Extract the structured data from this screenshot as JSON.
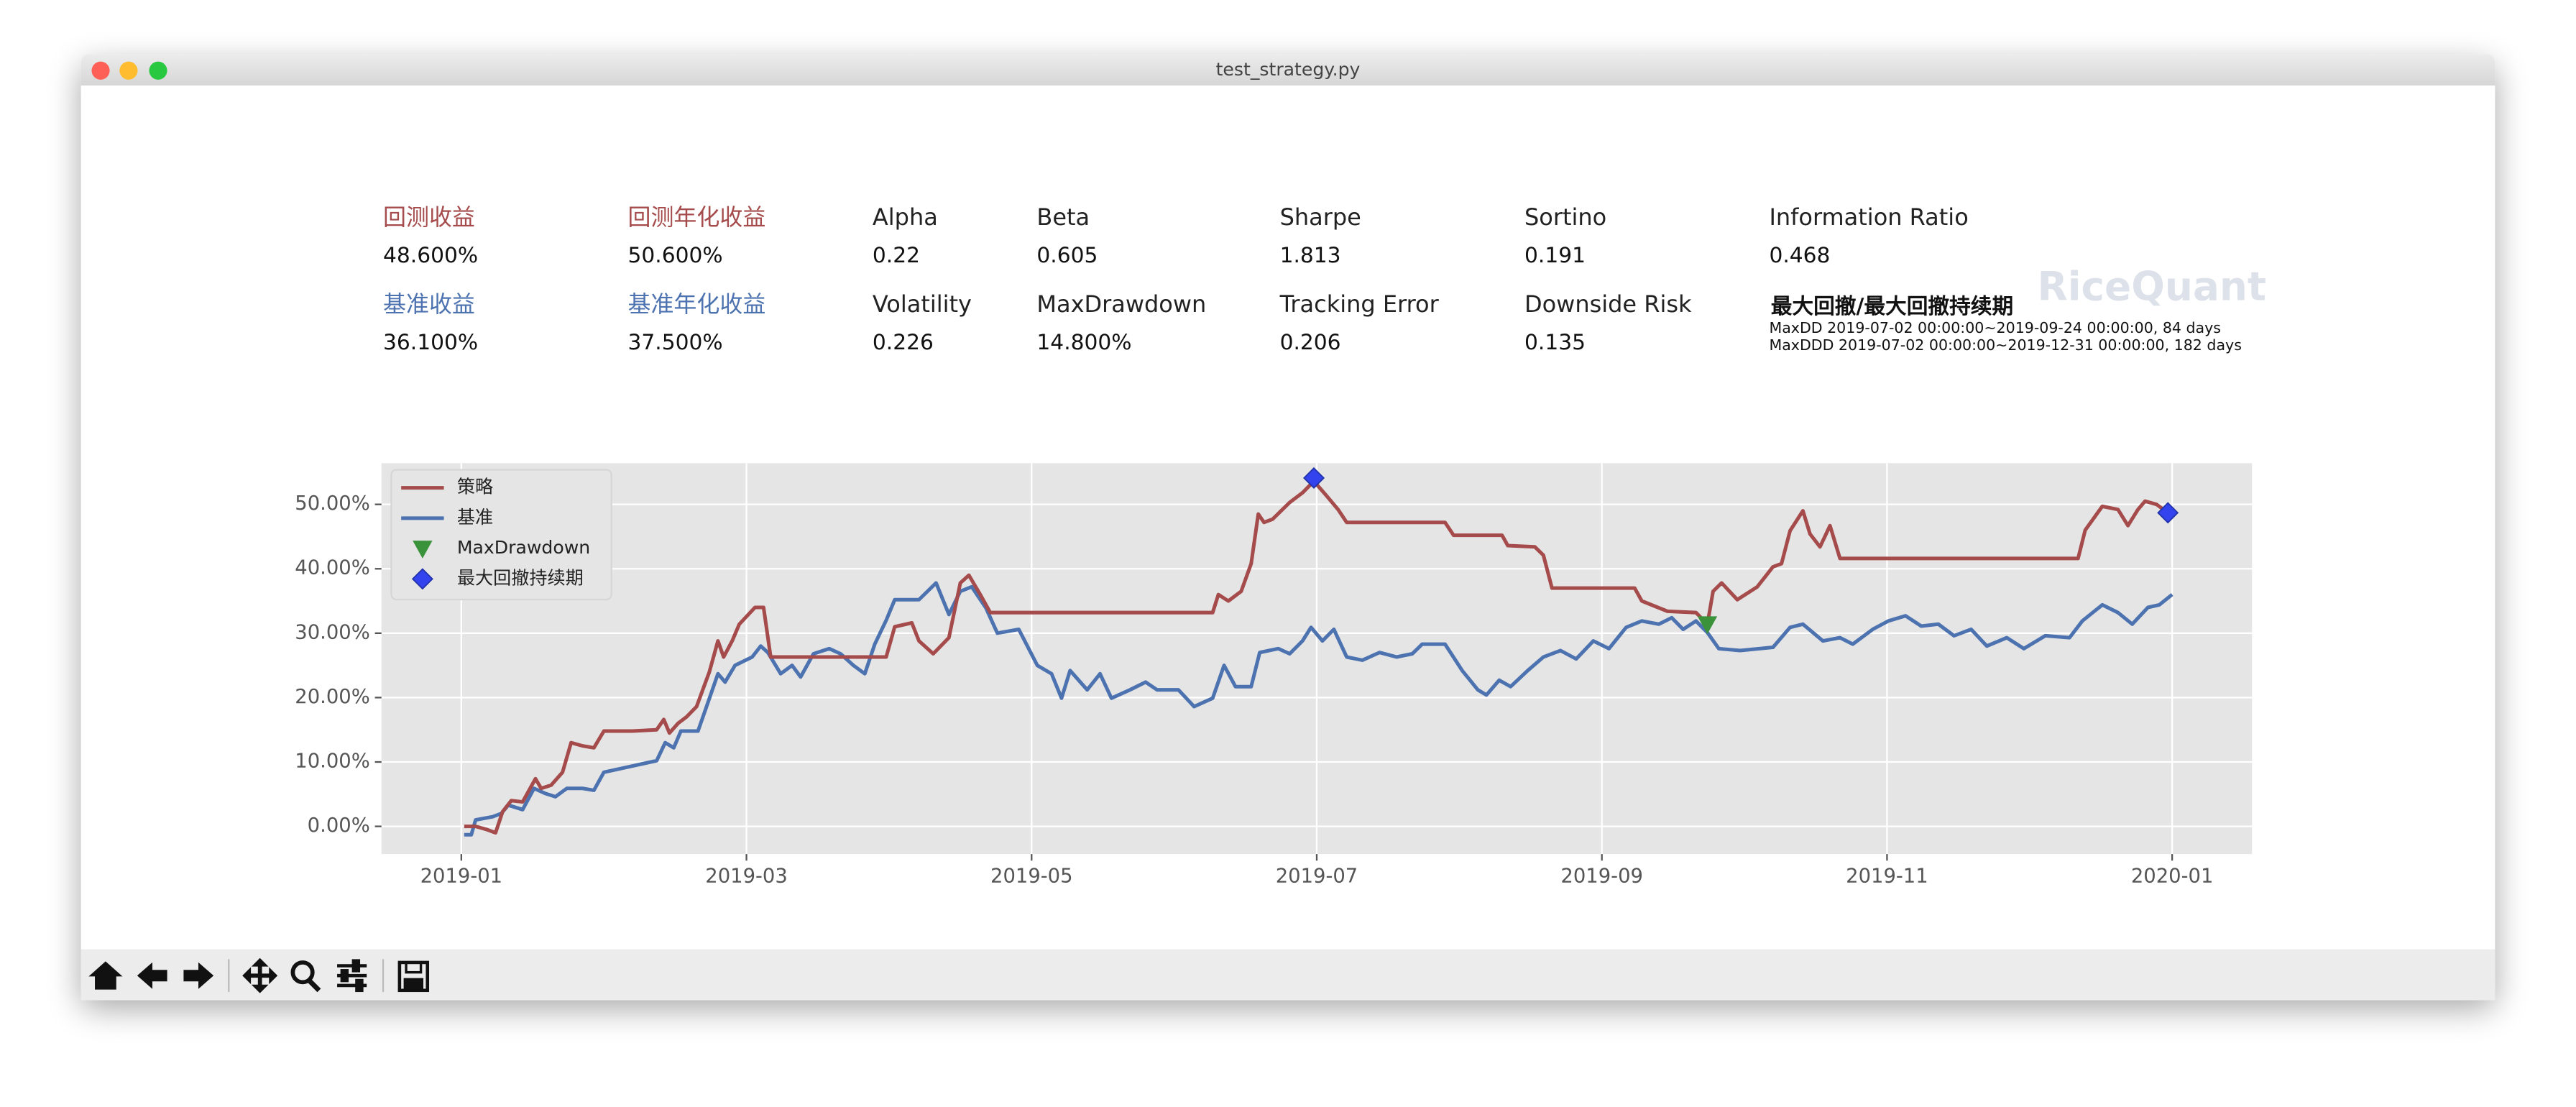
{
  "window": {
    "title": "test_strategy.py"
  },
  "metrics": [
    {
      "label": "回测收益",
      "value": "48.600%",
      "color": "#a54b4b"
    },
    {
      "label": "回测年化收益",
      "value": "50.600%",
      "color": "#a54b4b"
    },
    {
      "label": "Alpha",
      "value": "0.22",
      "color": "#222222"
    },
    {
      "label": "Beta",
      "value": "0.605",
      "color": "#222222"
    },
    {
      "label": "Sharpe",
      "value": "1.813",
      "color": "#222222"
    },
    {
      "label": "Sortino",
      "value": "0.191",
      "color": "#222222"
    },
    {
      "label": "Information Ratio",
      "value": "0.468",
      "color": "#222222"
    },
    {
      "label": "基准收益",
      "value": "36.100%",
      "color": "#4c72b0"
    },
    {
      "label": "基准年化收益",
      "value": "37.500%",
      "color": "#4c72b0"
    },
    {
      "label": "Volatility",
      "value": "0.226",
      "color": "#222222"
    },
    {
      "label": "MaxDrawdown",
      "value": "14.800%",
      "color": "#222222"
    },
    {
      "label": "Tracking Error",
      "value": "0.206",
      "color": "#222222"
    },
    {
      "label": "Downside Risk",
      "value": "0.135",
      "color": "#222222"
    }
  ],
  "drawdown": {
    "label": "最大回撤/最大回撤持续期",
    "lines": [
      "MaxDD  2019-07-02 00:00:00~2019-09-24 00:00:00, 84 days",
      "MaxDDD 2019-07-02 00:00:00~2019-12-31 00:00:00, 182 days"
    ]
  },
  "watermark": "RiceQuant",
  "chart_data": {
    "type": "line",
    "xlim": [
      -0.56,
      12.56
    ],
    "ylim": [
      -4.3,
      56.4
    ],
    "xticks": [
      {
        "value": 0,
        "label": "2019-01"
      },
      {
        "value": 2,
        "label": "2019-03"
      },
      {
        "value": 4,
        "label": "2019-05"
      },
      {
        "value": 6,
        "label": "2019-07"
      },
      {
        "value": 8,
        "label": "2019-09"
      },
      {
        "value": 10,
        "label": "2019-11"
      },
      {
        "value": 12,
        "label": "2020-01"
      }
    ],
    "yticks": [
      {
        "value": 0,
        "label": "0.00%"
      },
      {
        "value": 10,
        "label": "10.00%"
      },
      {
        "value": 20,
        "label": "20.00%"
      },
      {
        "value": 30,
        "label": "30.00%"
      },
      {
        "value": 40,
        "label": "40.00%"
      },
      {
        "value": 50,
        "label": "50.00%"
      }
    ],
    "grid": true,
    "legend": "upper left",
    "series": [
      {
        "name": "策略",
        "color": "#a54b4b",
        "marker": "line",
        "x": [
          0.02,
          0.1,
          0.18,
          0.24,
          0.29,
          0.35,
          0.43,
          0.47,
          0.52,
          0.56,
          0.63,
          0.71,
          0.77,
          0.85,
          0.93,
          1.0,
          1.2,
          1.37,
          1.42,
          1.46,
          1.52,
          1.58,
          1.65,
          1.74,
          1.8,
          1.84,
          1.9,
          1.95,
          2.06,
          2.12,
          2.17,
          2.98,
          3.04,
          3.16,
          3.21,
          3.31,
          3.42,
          3.5,
          3.56,
          3.64,
          3.71,
          5.27,
          5.31,
          5.38,
          5.47,
          5.54,
          5.59,
          5.63,
          5.69,
          5.81,
          5.9,
          5.98,
          6.07,
          6.15,
          6.21,
          6.9,
          6.96,
          7.3,
          7.34,
          7.53,
          7.59,
          7.65,
          8.23,
          8.28,
          8.46,
          8.66,
          8.74,
          8.78,
          8.84,
          8.95,
          9.09,
          9.2,
          9.26,
          9.32,
          9.41,
          9.46,
          9.53,
          9.6,
          9.67,
          11.34,
          11.39,
          11.51,
          11.62,
          11.69,
          11.76,
          11.81,
          11.89,
          11.97
        ],
        "values": [
          0,
          0,
          -0.5,
          -1,
          2.3,
          4,
          3.8,
          5.4,
          7.4,
          5.9,
          6.4,
          8.4,
          13,
          12.5,
          12.2,
          14.8,
          14.8,
          15,
          16.6,
          14.5,
          16,
          17,
          18.6,
          24,
          28.8,
          26.3,
          28.8,
          31.4,
          34,
          34,
          26.3,
          26.3,
          31,
          31.6,
          28.8,
          26.8,
          29.3,
          37.8,
          39,
          36,
          33.2,
          33.2,
          36,
          35,
          36.5,
          40.8,
          48.5,
          47.2,
          47.7,
          50.3,
          51.8,
          53.6,
          51.3,
          49.2,
          47.2,
          47.2,
          45.2,
          45.2,
          43.6,
          43.4,
          42.1,
          37,
          37,
          35,
          33.4,
          33.2,
          31.4,
          36.5,
          37.8,
          35.2,
          37.2,
          40.3,
          40.8,
          45.9,
          49,
          45.4,
          43.4,
          46.7,
          41.6,
          41.6,
          46,
          49.7,
          49.2,
          46.7,
          49.2,
          50.5,
          50,
          48.7
        ]
      },
      {
        "name": "基准",
        "color": "#4c72b0",
        "marker": "line",
        "x": [
          0.02,
          0.07,
          0.1,
          0.22,
          0.28,
          0.33,
          0.43,
          0.51,
          0.59,
          0.66,
          0.74,
          0.85,
          0.93,
          1.0,
          1.37,
          1.43,
          1.49,
          1.54,
          1.66,
          1.72,
          1.8,
          1.85,
          1.92,
          2.04,
          2.1,
          2.15,
          2.24,
          2.32,
          2.38,
          2.47,
          2.58,
          2.66,
          2.75,
          2.83,
          2.9,
          2.98,
          3.04,
          3.21,
          3.33,
          3.42,
          3.5,
          3.58,
          3.68,
          3.76,
          3.91,
          4.04,
          4.14,
          4.21,
          4.27,
          4.39,
          4.48,
          4.56,
          4.69,
          4.8,
          4.88,
          5.03,
          5.14,
          5.27,
          5.35,
          5.43,
          5.54,
          5.6,
          5.73,
          5.81,
          5.9,
          5.96,
          6.04,
          6.12,
          6.21,
          6.32,
          6.44,
          6.56,
          6.67,
          6.74,
          6.9,
          7.02,
          7.13,
          7.19,
          7.28,
          7.36,
          7.48,
          7.59,
          7.71,
          7.82,
          7.94,
          8.05,
          8.17,
          8.28,
          8.4,
          8.49,
          8.57,
          8.66,
          8.74,
          8.82,
          8.97,
          9.2,
          9.32,
          9.41,
          9.55,
          9.67,
          9.76,
          9.9,
          10.01,
          10.13,
          10.24,
          10.36,
          10.47,
          10.59,
          10.7,
          10.84,
          10.96,
          11.11,
          11.28,
          11.37,
          11.51,
          11.62,
          11.72,
          11.83,
          11.91,
          12.0
        ],
        "values": [
          -1.3,
          -1.3,
          1,
          1.5,
          2,
          3.3,
          2.6,
          5.9,
          5.1,
          4.6,
          5.9,
          5.9,
          5.6,
          8.4,
          10.2,
          13,
          12.2,
          14.8,
          14.8,
          18.6,
          23.7,
          22.4,
          25,
          26.3,
          28,
          27,
          23.7,
          25,
          23.2,
          26.8,
          27.6,
          26.8,
          25,
          23.7,
          28.3,
          32,
          35.2,
          35.2,
          37.8,
          32.9,
          36.5,
          37.2,
          33.9,
          30,
          30.6,
          25,
          23.7,
          19.9,
          24.2,
          21.2,
          23.7,
          19.9,
          21.2,
          22.4,
          21.2,
          21.2,
          18.6,
          19.9,
          25,
          21.7,
          21.7,
          27,
          27.6,
          26.8,
          28.8,
          30.9,
          28.8,
          30.6,
          26.3,
          25.8,
          27,
          26.3,
          26.8,
          28.3,
          28.3,
          24.2,
          21.2,
          20.4,
          22.7,
          21.7,
          24.2,
          26.3,
          27.3,
          26,
          28.8,
          27.6,
          30.9,
          31.9,
          31.4,
          32.4,
          30.6,
          31.9,
          30.1,
          27.6,
          27.3,
          27.8,
          30.9,
          31.4,
          28.8,
          29.3,
          28.3,
          30.6,
          31.9,
          32.7,
          31.1,
          31.4,
          29.6,
          30.6,
          28,
          29.3,
          27.6,
          29.6,
          29.3,
          31.9,
          34.4,
          33.2,
          31.4,
          34,
          34.4,
          36
        ]
      },
      {
        "name": "MaxDrawdown",
        "color": "#3a923a",
        "marker": "triangle",
        "x": [
          8.74
        ],
        "values": [
          31.4
        ]
      },
      {
        "name": "最大回撤持续期",
        "color": "#3344ee",
        "marker": "diamond",
        "x": [
          5.98,
          11.97
        ],
        "values": [
          54.1,
          48.7
        ]
      }
    ]
  }
}
